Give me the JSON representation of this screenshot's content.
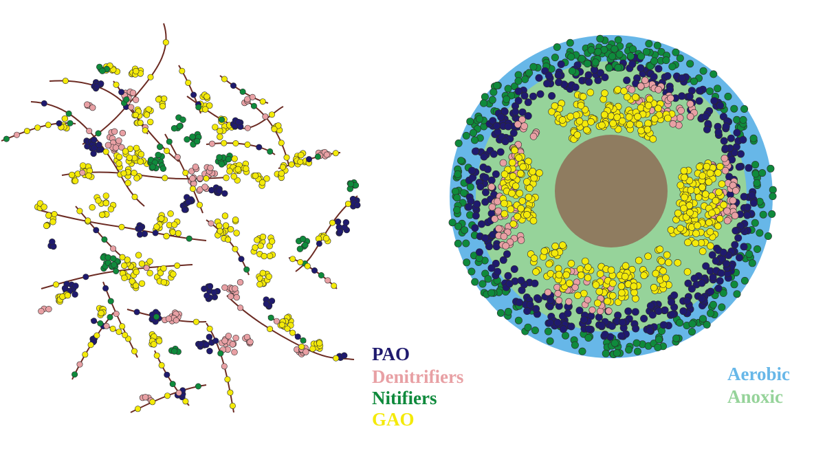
{
  "legend": {
    "organisms": [
      {
        "label": "PAO",
        "color": "#1f1a6e"
      },
      {
        "label": "Denitrifiers",
        "color": "#e8a0a4"
      },
      {
        "label": "Nitifiers",
        "color": "#0f8a3c"
      },
      {
        "label": "GAO",
        "color": "#f4ea0a"
      }
    ],
    "zones": [
      {
        "label": "Aerobic",
        "color": "#67b7e8"
      },
      {
        "label": "Anoxic",
        "color": "#96d39a"
      }
    ]
  },
  "colors": {
    "filament": "#6b2a22",
    "core": "#8f7c60",
    "cell_outline": "#2a2a2a"
  }
}
